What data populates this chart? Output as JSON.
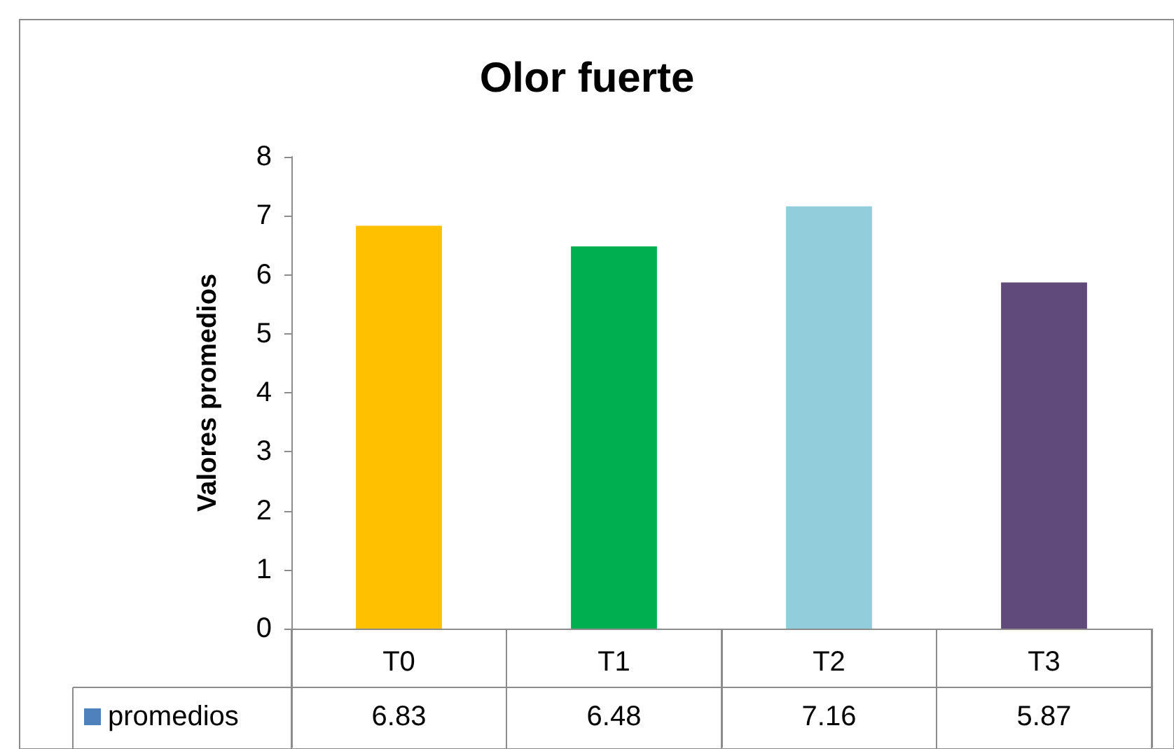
{
  "chart_data": {
    "type": "bar",
    "title": "Olor fuerte",
    "ylabel": "Valores promedios",
    "categories": [
      "T0",
      "T1",
      "T2",
      "T3"
    ],
    "series": [
      {
        "name": "promedios",
        "color": "#4f81bd",
        "colors": [
          "#ffc000",
          "#00b050",
          "#92cddc",
          "#604a7b"
        ],
        "values": [
          6.83,
          6.48,
          7.16,
          5.87
        ]
      }
    ],
    "ylim": [
      0,
      8
    ],
    "yticks": [
      0,
      1,
      2,
      3,
      4,
      5,
      6,
      7,
      8
    ],
    "data_labels": true
  }
}
